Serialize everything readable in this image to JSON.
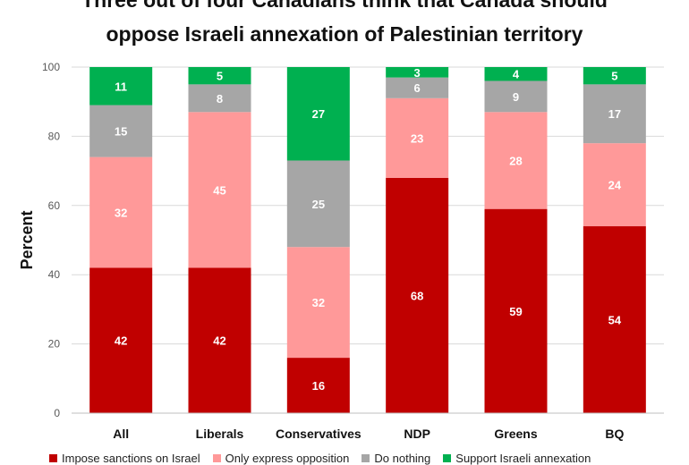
{
  "title_line1": "Three out of four Canadians think that Canada should",
  "title_line2": "oppose Israeli annexation of Palestinian territory",
  "chart_data": {
    "type": "bar",
    "stacked": true,
    "title": "Three out of four Canadians think that Canada should oppose Israeli annexation of Palestinian territory",
    "xlabel": "",
    "ylabel": "Percent",
    "ylim": [
      0,
      100
    ],
    "yticks": [
      0,
      20,
      40,
      60,
      80,
      100
    ],
    "grid": true,
    "legend_position": "bottom",
    "categories": [
      "All",
      "Liberals",
      "Conservatives",
      "NDP",
      "Greens",
      "BQ"
    ],
    "series": [
      {
        "name": "Impose sanctions on Israel",
        "color": "#c00000",
        "values": [
          42,
          42,
          16,
          68,
          59,
          54
        ]
      },
      {
        "name": "Only express opposition",
        "color": "#ff9999",
        "values": [
          32,
          45,
          32,
          23,
          28,
          24
        ]
      },
      {
        "name": "Do nothing",
        "color": "#a6a6a6",
        "values": [
          15,
          8,
          25,
          6,
          9,
          17
        ]
      },
      {
        "name": "Support Israeli annexation",
        "color": "#00b050",
        "values": [
          11,
          5,
          27,
          3,
          4,
          5
        ]
      }
    ]
  },
  "legend_labels": [
    "Impose sanctions on Israel",
    "Only express opposition",
    "Do nothing",
    "Support Israeli annexation"
  ]
}
